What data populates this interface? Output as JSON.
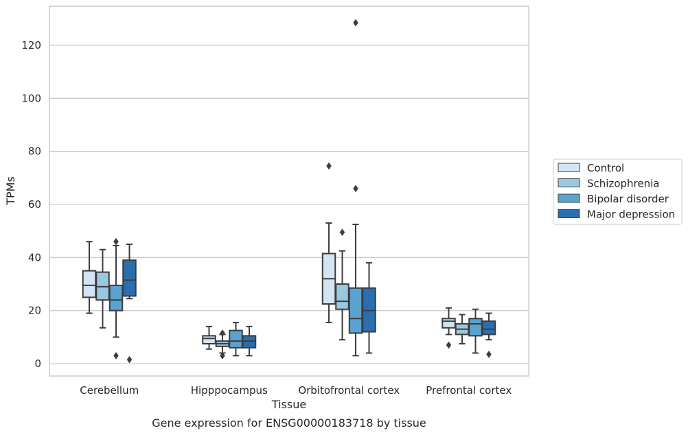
{
  "chart_data": {
    "type": "box",
    "title": "Gene expression for ENSG00000183718 by tissue",
    "xlabel": "Tissue",
    "ylabel": "TPMs",
    "ylim": [
      -4.5,
      135
    ],
    "yticks": [
      0,
      20,
      40,
      60,
      80,
      100,
      120
    ],
    "grid": "y",
    "legend_position": "right",
    "categories": [
      "Cerebellum",
      "Hipppocampus",
      "Orbitofrontal cortex",
      "Prefrontal cortex"
    ],
    "series": [
      {
        "name": "Control",
        "color": "#d3e4f3",
        "boxes": [
          {
            "whisker_low": 19,
            "q1": 25,
            "median": 29.5,
            "q3": 35,
            "whisker_high": 46,
            "outliers": []
          },
          {
            "whisker_low": 5.5,
            "q1": 7.5,
            "median": 9.5,
            "q3": 10.5,
            "whisker_high": 14,
            "outliers": []
          },
          {
            "whisker_low": 15.5,
            "q1": 22.5,
            "median": 32,
            "q3": 41.5,
            "whisker_high": 53,
            "outliers": [
              74.5
            ]
          },
          {
            "whisker_low": 11,
            "q1": 13.5,
            "median": 16,
            "q3": 17,
            "whisker_high": 21,
            "outliers": [
              7
            ]
          }
        ]
      },
      {
        "name": "Schizophrenia",
        "color": "#9ac8e0",
        "boxes": [
          {
            "whisker_low": 13.5,
            "q1": 24,
            "median": 29,
            "q3": 34.5,
            "whisker_high": 43,
            "outliers": []
          },
          {
            "whisker_low": 4,
            "q1": 6.5,
            "median": 7.5,
            "q3": 8.5,
            "whisker_high": 11,
            "outliers": [
              3,
              11.5
            ]
          },
          {
            "whisker_low": 9,
            "q1": 20.5,
            "median": 23.5,
            "q3": 30,
            "whisker_high": 42.5,
            "outliers": [
              49.5
            ]
          },
          {
            "whisker_low": 7.5,
            "q1": 11,
            "median": 13,
            "q3": 15,
            "whisker_high": 18.5,
            "outliers": []
          }
        ]
      },
      {
        "name": "Bipolar disorder",
        "color": "#5aa2cf",
        "boxes": [
          {
            "whisker_low": 10,
            "q1": 20,
            "median": 24,
            "q3": 29.5,
            "whisker_high": 44.5,
            "outliers": [
              3,
              46
            ]
          },
          {
            "whisker_low": 3,
            "q1": 6,
            "median": 8.5,
            "q3": 12.5,
            "whisker_high": 15.5,
            "outliers": []
          },
          {
            "whisker_low": 3,
            "q1": 11.5,
            "median": 17,
            "q3": 28.5,
            "whisker_high": 52.5,
            "outliers": [
              66,
              128.5
            ]
          },
          {
            "whisker_low": 4,
            "q1": 10.5,
            "median": 15,
            "q3": 17,
            "whisker_high": 20.5,
            "outliers": []
          }
        ]
      },
      {
        "name": "Major depression",
        "color": "#2b6eaf",
        "boxes": [
          {
            "whisker_low": 24.5,
            "q1": 25.5,
            "median": 31.5,
            "q3": 39,
            "whisker_high": 45,
            "outliers": [
              1.5
            ]
          },
          {
            "whisker_low": 3,
            "q1": 6,
            "median": 8.5,
            "q3": 10.5,
            "whisker_high": 14,
            "outliers": []
          },
          {
            "whisker_low": 4,
            "q1": 12,
            "median": 20,
            "q3": 28.5,
            "whisker_high": 38,
            "outliers": []
          },
          {
            "whisker_low": 9,
            "q1": 11,
            "median": 13,
            "q3": 16,
            "whisker_high": 19,
            "outliers": [
              3.5
            ]
          }
        ]
      }
    ]
  }
}
